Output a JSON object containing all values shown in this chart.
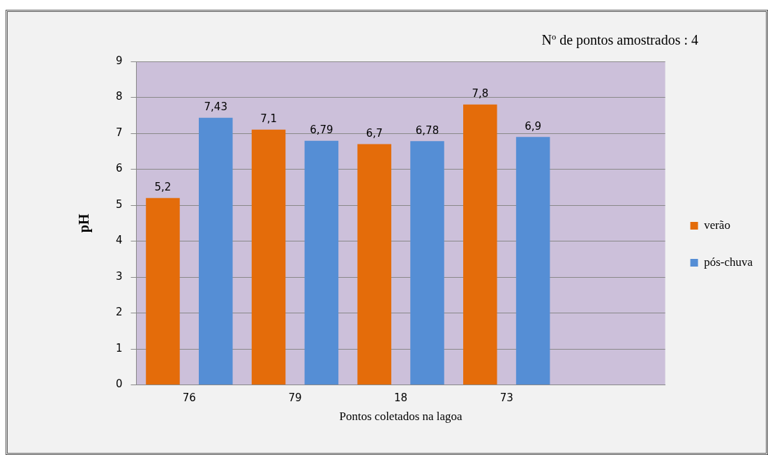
{
  "chart_data": {
    "type": "bar",
    "xlabel": "Pontos coletados na lagoa",
    "ylabel": "pH",
    "annotations": [
      "Nº de pontos amostrados : 4"
    ],
    "categories": [
      "76",
      "79",
      "18",
      "73",
      null
    ],
    "series": [
      {
        "name": "verão",
        "color": "#e46c0a",
        "values": [
          5.2,
          7.1,
          6.7,
          7.8,
          null
        ]
      },
      {
        "name": "pós-chuva",
        "color": "#558ed5",
        "values": [
          7.43,
          6.79,
          6.78,
          6.9,
          null
        ]
      }
    ],
    "value_labels": [
      [
        "5,2",
        "7,1",
        "6,7",
        "7,8",
        null
      ],
      [
        "7,43",
        "6,79",
        "6,78",
        "6,9",
        null
      ]
    ],
    "ylim": [
      0,
      9
    ],
    "yticks": [
      0,
      1,
      2,
      3,
      4,
      5,
      6,
      7,
      8,
      9
    ],
    "grid": "y",
    "legend": "right"
  }
}
